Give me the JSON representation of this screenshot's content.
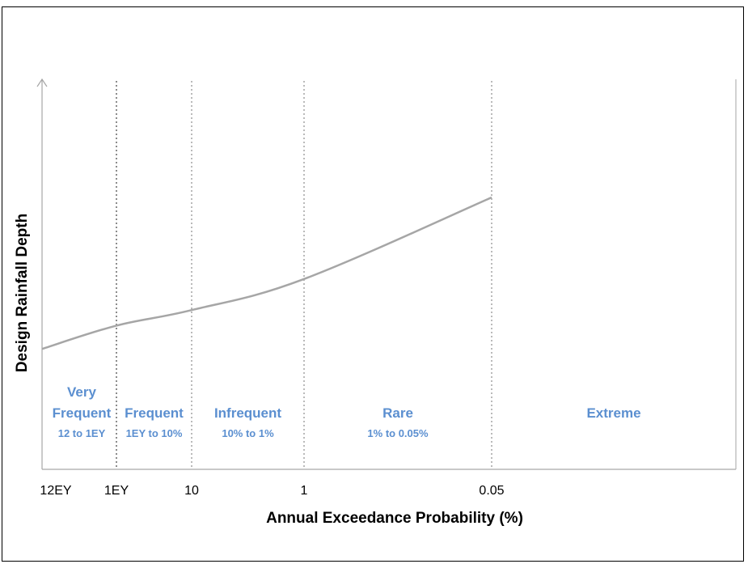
{
  "chart_data": {
    "type": "line",
    "title": "",
    "xlabel": "Annual Exceedance Probability (%)",
    "ylabel": "Design Rainfall Depth",
    "x_ticks": [
      "12EY",
      "1EY",
      "10",
      "1",
      "0.05"
    ],
    "series": [
      {
        "x": [
          "12EY",
          "1EY",
          "10",
          "1",
          "0.05"
        ],
        "values": [
          0.31,
          0.37,
          0.41,
          0.49,
          0.7
        ]
      }
    ],
    "ylim": [
      0,
      1
    ],
    "zones": [
      {
        "name_lines": [
          "Very",
          "Frequent"
        ],
        "range": "12 to 1EY"
      },
      {
        "name_lines": [
          "Frequent"
        ],
        "range": "1EY to 10%"
      },
      {
        "name_lines": [
          "Infrequent"
        ],
        "range": "10% to 1%"
      },
      {
        "name_lines": [
          "Rare"
        ],
        "range": "1% to 0.05%"
      },
      {
        "name_lines": [
          "Extreme"
        ],
        "range": ""
      }
    ],
    "grid": false,
    "colors": {
      "line": "#a6a6a6",
      "zone_text": "#5b8fd0",
      "axis": "#a6a6a6",
      "divider": "#8c8c8c"
    }
  }
}
